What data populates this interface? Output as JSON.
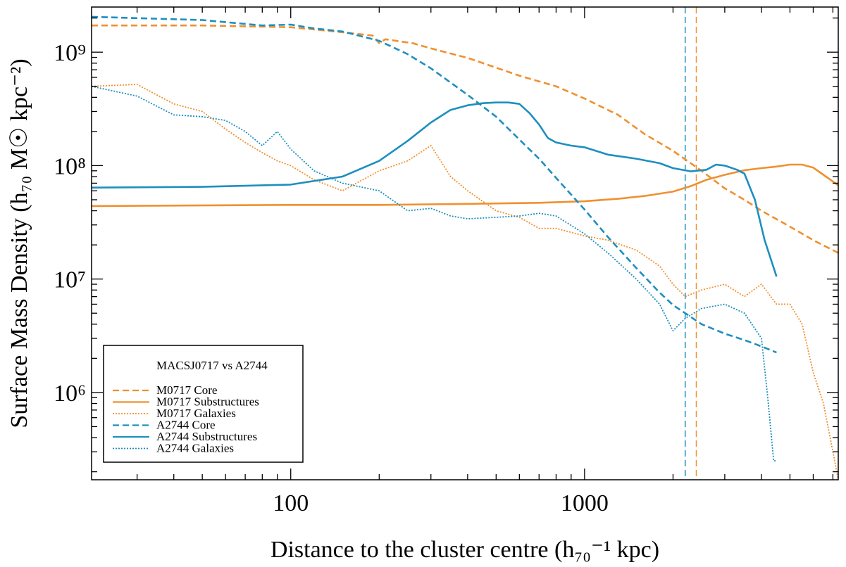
{
  "chart_data": {
    "type": "line",
    "title": "",
    "xlabel": "Distance to the cluster centre (h₇₀⁻¹ kpc)",
    "ylabel": "Surface Mass Density (h₇₀ M☉ kpc⁻²)",
    "x_scale": "log",
    "y_scale": "log",
    "xlim": [
      21,
      7300
    ],
    "ylim": [
      170000,
      2500000000
    ],
    "x_tick_labels": [
      "100",
      "1000"
    ],
    "y_tick_labels": [
      "10⁶",
      "10⁷",
      "10⁸",
      "10⁹"
    ],
    "grid": false,
    "legend_position": "bottom-left",
    "legend_title": "MACSJ0717 vs A2744",
    "colors": {
      "M0717": "#f0902f",
      "A2744": "#1d8fbf"
    },
    "series": [
      {
        "name": "M0717 Core",
        "style": "dashed",
        "color": "#f0902f",
        "x": [
          21,
          50,
          100,
          150,
          190,
          200,
          210,
          260,
          300,
          400,
          500,
          600,
          800,
          1000,
          1300,
          1600,
          2000,
          2500,
          3000,
          3500,
          4000,
          5000,
          6000,
          7300
        ],
        "y": [
          1720000000.0,
          1720000000.0,
          1660000000.0,
          1500000000.0,
          1400000000.0,
          1200000000.0,
          1300000000.0,
          1200000000.0,
          1080000000.0,
          890000000.0,
          730000000.0,
          620000000.0,
          500000000.0,
          390000000.0,
          280000000.0,
          190000000.0,
          135000000.0,
          90000000.0,
          63000000.0,
          50000000.0,
          40000000.0,
          29000000.0,
          22000000.0,
          17000000.0
        ]
      },
      {
        "name": "M0717 Substructures",
        "style": "solid",
        "color": "#f0902f",
        "x": [
          21,
          100,
          200,
          400,
          700,
          1000,
          1300,
          1600,
          2000,
          2300,
          2600,
          3000,
          3500,
          4000,
          4500,
          5000,
          5500,
          6000,
          6500,
          7300
        ],
        "y": [
          44000000.0,
          45000000.0,
          45000000.0,
          46000000.0,
          47000000.0,
          48500000.0,
          51000000.0,
          54000000.0,
          59000000.0,
          66000000.0,
          75000000.0,
          83000000.0,
          91000000.0,
          95000000.0,
          98000000.0,
          102000000.0,
          102000000.0,
          96000000.0,
          83000000.0,
          67000000.0
        ]
      },
      {
        "name": "M0717 Galaxies",
        "style": "dotted",
        "color": "#f0902f",
        "x": [
          21,
          30,
          40,
          50,
          60,
          70,
          80,
          90,
          100,
          120,
          150,
          200,
          250,
          300,
          350,
          400,
          500,
          600,
          700,
          800,
          1000,
          1200,
          1500,
          1800,
          2000,
          2200,
          2500,
          3000,
          3500,
          4000,
          4500,
          5000,
          5500,
          6000,
          6500,
          7000,
          7300
        ],
        "y": [
          500000000.0,
          520000000.0,
          350000000.0,
          300000000.0,
          210000000.0,
          160000000.0,
          130000000.0,
          110000000.0,
          100000000.0,
          75000000.0,
          60000000.0,
          90000000.0,
          110000000.0,
          150000000.0,
          80000000.0,
          60000000.0,
          40000000.0,
          35000000.0,
          28000000.0,
          28000000.0,
          24000000.0,
          22000000.0,
          18000000.0,
          13000000.0,
          9000000.0,
          7000000.0,
          8000000.0,
          9000000.0,
          7000000.0,
          9000000.0,
          6000000.0,
          6000000.0,
          4000000.0,
          1500000.0,
          800000.0,
          300000.0,
          170000.0
        ]
      },
      {
        "name": "A2744 Core",
        "style": "dashed",
        "color": "#1d8fbf",
        "x": [
          21,
          50,
          80,
          100,
          120,
          150,
          200,
          250,
          300,
          400,
          500,
          600,
          700,
          800,
          1000,
          1200,
          1500,
          1800,
          2000,
          2500,
          3000,
          3500,
          4000,
          4500
        ],
        "y": [
          2050000000.0,
          1920000000.0,
          1720000000.0,
          1750000000.0,
          1620000000.0,
          1520000000.0,
          1260000000.0,
          960000000.0,
          720000000.0,
          420000000.0,
          270000000.0,
          170000000.0,
          115000000.0,
          78000000.0,
          41000000.0,
          23500000.0,
          12500000.0,
          7600000.0,
          5900000.0,
          4000000.0,
          3300000.0,
          2900000.0,
          2550000.0,
          2250000.0
        ]
      },
      {
        "name": "A2744 Substructures",
        "style": "solid",
        "color": "#1d8fbf",
        "x": [
          21,
          50,
          100,
          150,
          200,
          250,
          300,
          350,
          400,
          450,
          500,
          550,
          600,
          650,
          700,
          750,
          800,
          900,
          1000,
          1200,
          1500,
          1800,
          2000,
          2300,
          2600,
          2800,
          3000,
          3300,
          3500,
          3800,
          4100,
          4500
        ],
        "y": [
          64000000.0,
          65000000.0,
          68000000.0,
          80000000.0,
          110000000.0,
          165000000.0,
          240000000.0,
          310000000.0,
          340000000.0,
          355000000.0,
          360000000.0,
          360000000.0,
          350000000.0,
          290000000.0,
          230000000.0,
          175000000.0,
          160000000.0,
          150000000.0,
          145000000.0,
          125000000.0,
          115000000.0,
          105000000.0,
          95000000.0,
          89000000.0,
          92000000.0,
          102000000.0,
          100000000.0,
          92000000.0,
          85000000.0,
          50000000.0,
          22000000.0,
          10500000.0
        ]
      },
      {
        "name": "A2744 Galaxies",
        "style": "dotted",
        "color": "#1d8fbf",
        "x": [
          21,
          30,
          40,
          50,
          60,
          70,
          80,
          90,
          100,
          120,
          150,
          200,
          250,
          300,
          350,
          400,
          500,
          600,
          700,
          800,
          1000,
          1200,
          1500,
          1800,
          2000,
          2200,
          2500,
          3000,
          3500,
          4000,
          4200,
          4400,
          4500
        ],
        "y": [
          500000000.0,
          410000000.0,
          280000000.0,
          270000000.0,
          250000000.0,
          200000000.0,
          150000000.0,
          200000000.0,
          140000000.0,
          90000000.0,
          70000000.0,
          60000000.0,
          40000000.0,
          42000000.0,
          36000000.0,
          34000000.0,
          35000000.0,
          36000000.0,
          38000000.0,
          36000000.0,
          25000000.0,
          17000000.0,
          10000000.0,
          6000000.0,
          3500000.0,
          4500000.0,
          5500000.0,
          6000000.0,
          5000000.0,
          3000000.0,
          900000.0,
          250000.0,
          250000.0
        ]
      }
    ],
    "vertical_lines": [
      {
        "x": 2200,
        "style": "dashed",
        "color": "#1d8fbf"
      },
      {
        "x": 2400,
        "style": "dashed",
        "color": "#f0902f"
      }
    ]
  }
}
